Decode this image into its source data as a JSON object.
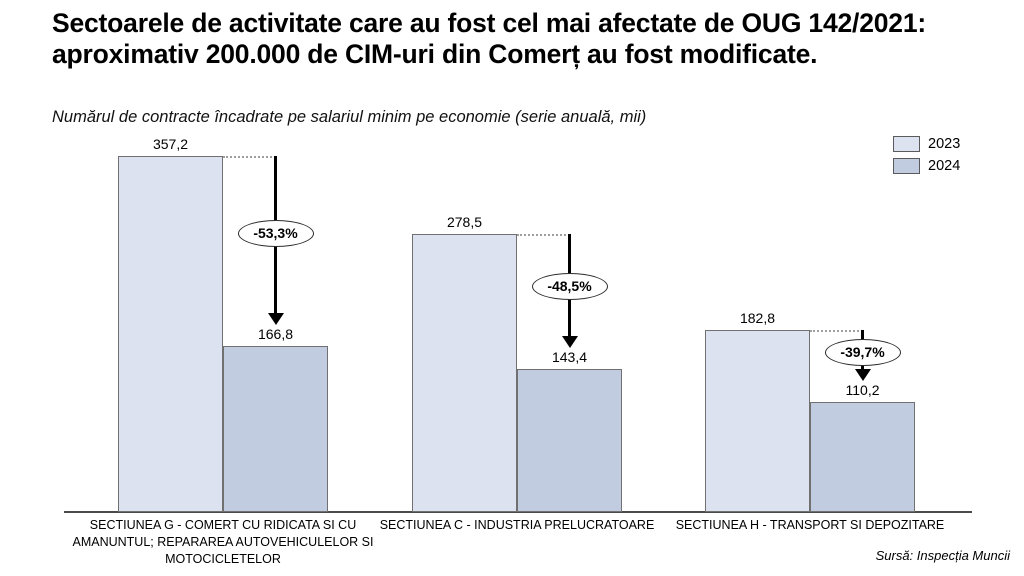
{
  "page": {
    "title": "Sectoarele de activitate care au fost cel mai afectate de OUG 142/2021: aproximativ 200.000 de CIM-uri din Comerț au fost modificate.",
    "subtitle": "Numărul de contracte încadrate pe salariul minim pe economie (serie anuală, mii)",
    "source": "Sursă: Inspecția Muncii"
  },
  "legend": {
    "items": [
      {
        "label": "2023",
        "color": "#dce2ef"
      },
      {
        "label": "2024",
        "color": "#c2cce0"
      }
    ]
  },
  "chart_data": {
    "type": "bar",
    "title": "Sectoarele de activitate care au fost cel mai afectate de OUG 142/2021: aproximativ 200.000 de CIM-uri din Comerț au fost modificate.",
    "subtitle": "Numărul de contracte încadrate pe salariul minim pe economie (serie anuală, mii)",
    "categories": [
      "SECTIUNEA G - COMERT CU RIDICATA SI CU AMANUNTUL; REPARAREA AUTOVEHICULELOR SI MOTOCICLETELOR",
      "SECTIUNEA C - INDUSTRIA PRELUCRATOARE",
      "SECTIUNEA H - TRANSPORT SI DEPOZITARE"
    ],
    "series": [
      {
        "name": "2023",
        "values": [
          357.2,
          278.5,
          182.8
        ],
        "labels": [
          "357,2",
          "278,5",
          "182,8"
        ],
        "color": "#dce2ef"
      },
      {
        "name": "2024",
        "values": [
          166.8,
          143.4,
          110.2
        ],
        "labels": [
          "166,8",
          "143,4",
          "110,2"
        ],
        "color": "#c2cce0"
      }
    ],
    "annotations": {
      "percent_changes": [
        "-53,3%",
        "-48,5%",
        "-39,7%"
      ]
    },
    "ylim": [
      0,
      380
    ],
    "grid": false,
    "legend_position": "top-right",
    "source": "Sursă: Inspecția Muncii"
  }
}
